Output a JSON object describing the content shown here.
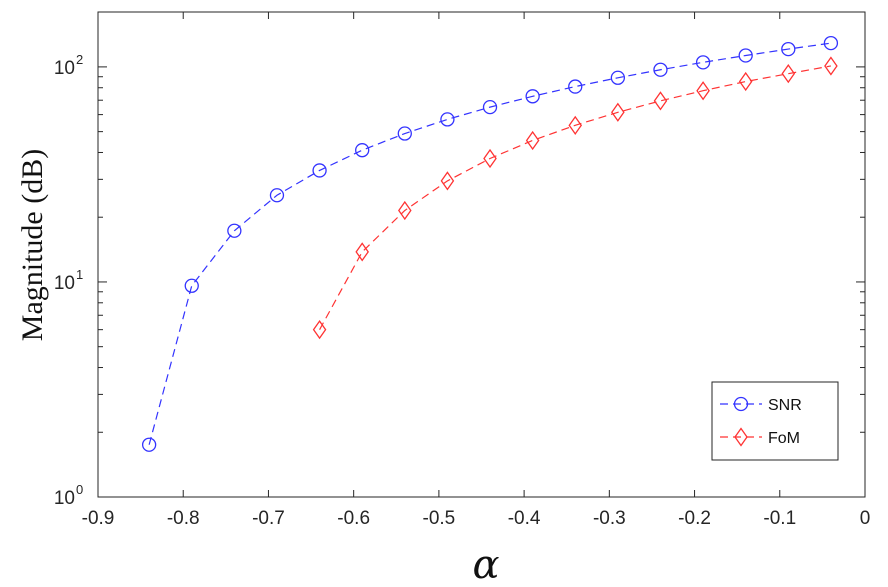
{
  "chart_data": {
    "type": "line",
    "xlabel": "α",
    "ylabel": "Magnitude (dB)",
    "xlim": [
      -0.9,
      0
    ],
    "ylim": [
      1,
      180
    ],
    "yscale": "log",
    "grid": false,
    "legend_position": "bottom-right",
    "x_ticks": [
      "-0.9",
      "-0.8",
      "-0.7",
      "-0.6",
      "-0.5",
      "-0.4",
      "-0.3",
      "-0.2",
      "-0.1",
      "0"
    ],
    "y_ticks": [
      {
        "value": 1,
        "base": "10",
        "exp": "0"
      },
      {
        "value": 10,
        "base": "10",
        "exp": "1"
      },
      {
        "value": 100,
        "base": "10",
        "exp": "2"
      }
    ],
    "series": [
      {
        "name": "SNR",
        "color": "#3333ff",
        "marker": "circle",
        "line": "dashed",
        "x": [
          -0.84,
          -0.79,
          -0.74,
          -0.69,
          -0.64,
          -0.59,
          -0.54,
          -0.49,
          -0.44,
          -0.39,
          -0.34,
          -0.29,
          -0.24,
          -0.19,
          -0.14,
          -0.09,
          -0.04
        ],
        "values": [
          1.75,
          9.6,
          17.3,
          25.3,
          33,
          41,
          49,
          57,
          65,
          73,
          81,
          89,
          97,
          105,
          113,
          121,
          129
        ]
      },
      {
        "name": "FoM",
        "color": "#ff3333",
        "marker": "diamond",
        "line": "dashed",
        "x": [
          -0.64,
          -0.59,
          -0.54,
          -0.49,
          -0.44,
          -0.39,
          -0.34,
          -0.29,
          -0.24,
          -0.19,
          -0.14,
          -0.09,
          -0.04
        ],
        "values": [
          6.0,
          13.8,
          21.5,
          29.5,
          37.5,
          45.5,
          53.5,
          61.5,
          69.5,
          77.5,
          85.5,
          93,
          101
        ]
      }
    ]
  }
}
